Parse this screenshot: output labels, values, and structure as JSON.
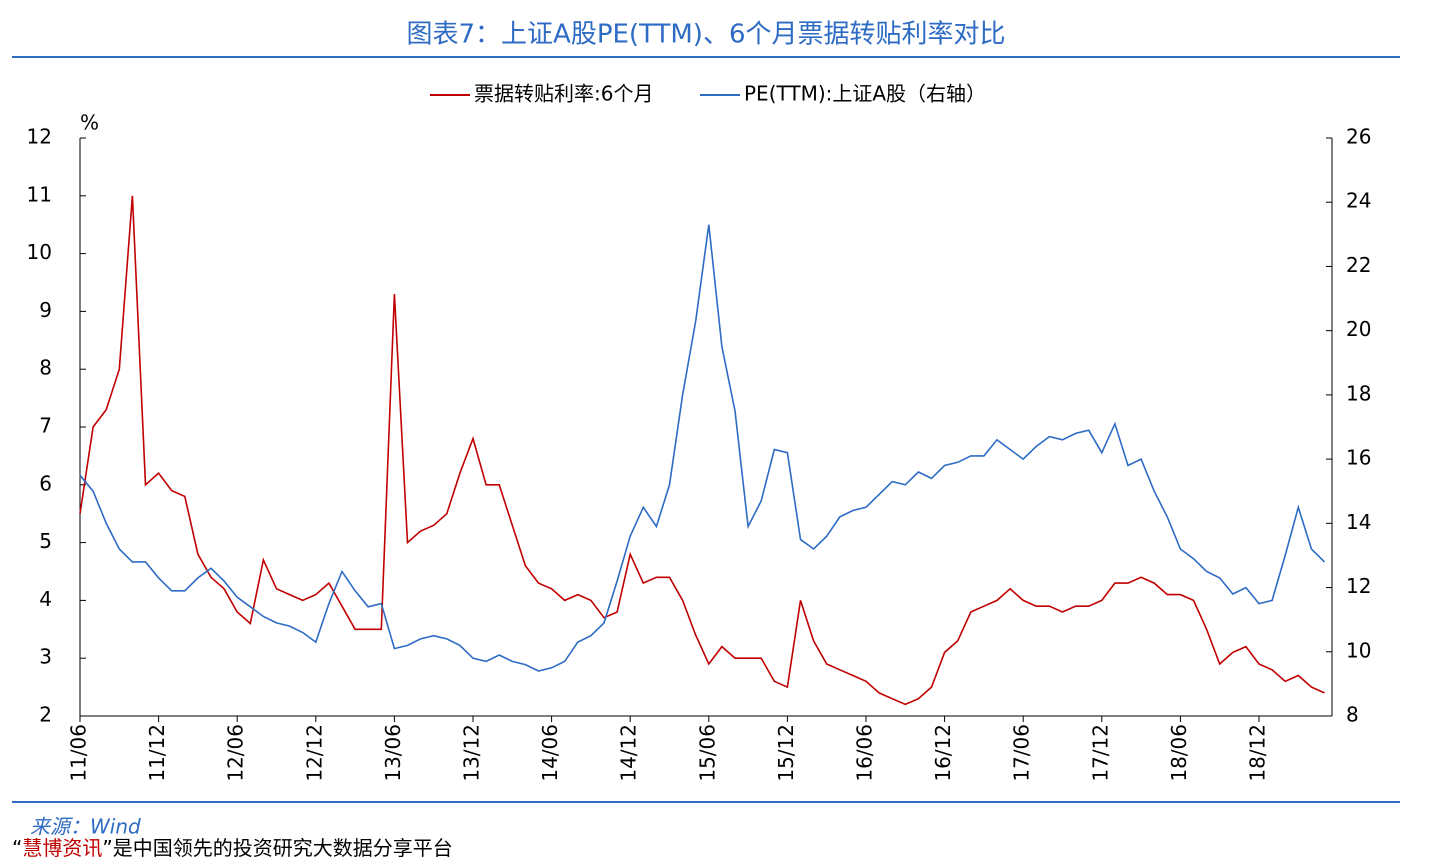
{
  "chart_data": {
    "type": "line",
    "title": "图表7：上证A股PE(TTM)、6个月票据转贴利率对比",
    "y_label": "%",
    "legend": "top",
    "categories": [
      "11/06",
      null,
      null,
      null,
      null,
      null,
      "11/12",
      null,
      null,
      null,
      null,
      null,
      "12/06",
      null,
      null,
      null,
      null,
      null,
      "12/12",
      null,
      null,
      null,
      null,
      null,
      "13/06",
      null,
      null,
      null,
      null,
      null,
      "13/12",
      null,
      null,
      null,
      null,
      null,
      "14/06",
      null,
      null,
      null,
      null,
      null,
      "14/12",
      null,
      null,
      null,
      null,
      null,
      "15/06",
      null,
      null,
      null,
      null,
      null,
      "15/12",
      null,
      null,
      null,
      null,
      null,
      "16/06",
      null,
      null,
      null,
      null,
      null,
      "16/12",
      null,
      null,
      null,
      null,
      null,
      "17/06",
      null,
      null,
      null,
      null,
      null,
      "17/12",
      null,
      null,
      null,
      null,
      null,
      "18/06",
      null,
      null,
      null,
      null,
      null,
      "18/12",
      null,
      null,
      null,
      null,
      null
    ],
    "ylim": [
      2,
      12
    ],
    "yticks": [
      2,
      3,
      4,
      5,
      6,
      7,
      8,
      9,
      10,
      11,
      12
    ],
    "y2lim": [
      8,
      26
    ],
    "y2ticks": [
      8,
      10,
      12,
      14,
      16,
      18,
      20,
      22,
      24,
      26
    ],
    "series": [
      {
        "name": "票据转贴利率:6个月",
        "color": "#c00000",
        "axis": "y",
        "values": [
          5.5,
          7.0,
          7.3,
          8.0,
          11.0,
          6.0,
          6.2,
          5.9,
          5.8,
          4.8,
          4.4,
          4.2,
          3.8,
          3.6,
          4.7,
          4.2,
          4.1,
          4.0,
          4.1,
          4.3,
          3.9,
          3.5,
          3.5,
          3.5,
          9.3,
          5.0,
          5.2,
          5.3,
          5.5,
          6.2,
          6.8,
          6.0,
          6.0,
          5.3,
          4.6,
          4.3,
          4.2,
          4.0,
          4.1,
          4.0,
          3.7,
          3.8,
          4.8,
          4.3,
          4.4,
          4.4,
          4.0,
          3.4,
          2.9,
          3.2,
          3.0,
          3.0,
          3.0,
          2.6,
          2.5,
          4.0,
          3.3,
          2.9,
          2.8,
          2.7,
          2.6,
          2.4,
          2.3,
          2.2,
          2.3,
          2.5,
          3.1,
          3.3,
          3.8,
          3.9,
          4.0,
          4.2,
          4.0,
          3.9,
          3.9,
          3.8,
          3.9,
          3.9,
          4.0,
          4.3,
          4.3,
          4.4,
          4.3,
          4.1,
          4.1,
          4.0,
          3.5,
          2.9,
          3.1,
          3.2,
          2.9,
          2.8,
          2.6,
          2.7,
          2.5,
          2.4
        ]
      },
      {
        "name": "PE(TTM):上证A股（右轴）",
        "color": "#2e6bc4",
        "axis": "y2",
        "values": [
          15.5,
          15.0,
          14.0,
          13.2,
          12.8,
          12.8,
          12.3,
          11.9,
          11.9,
          12.3,
          12.6,
          12.2,
          11.7,
          11.4,
          11.1,
          10.9,
          10.8,
          10.6,
          10.3,
          11.5,
          12.5,
          11.9,
          11.4,
          11.5,
          10.1,
          10.2,
          10.4,
          10.5,
          10.4,
          10.2,
          9.8,
          9.7,
          9.9,
          9.7,
          9.6,
          9.4,
          9.5,
          9.7,
          10.3,
          10.5,
          10.9,
          12.2,
          13.6,
          14.5,
          13.9,
          15.2,
          18.0,
          20.3,
          23.3,
          19.5,
          17.5,
          13.9,
          14.7,
          16.3,
          16.2,
          13.5,
          13.2,
          13.6,
          14.2,
          14.4,
          14.5,
          14.9,
          15.3,
          15.2,
          15.6,
          15.4,
          15.8,
          15.9,
          16.1,
          16.1,
          16.6,
          16.3,
          16.0,
          16.4,
          16.7,
          16.6,
          16.8,
          16.9,
          16.2,
          17.1,
          15.8,
          16.0,
          15.0,
          14.2,
          13.2,
          12.9,
          12.5,
          12.3,
          11.8,
          12.0,
          11.5,
          11.6,
          13.0,
          14.5,
          13.2,
          12.8
        ]
      }
    ],
    "source": "来源：Wind",
    "footer": [
      "“",
      "慧博资讯",
      "”是中国领先的投资研究大数据分享平台"
    ]
  }
}
